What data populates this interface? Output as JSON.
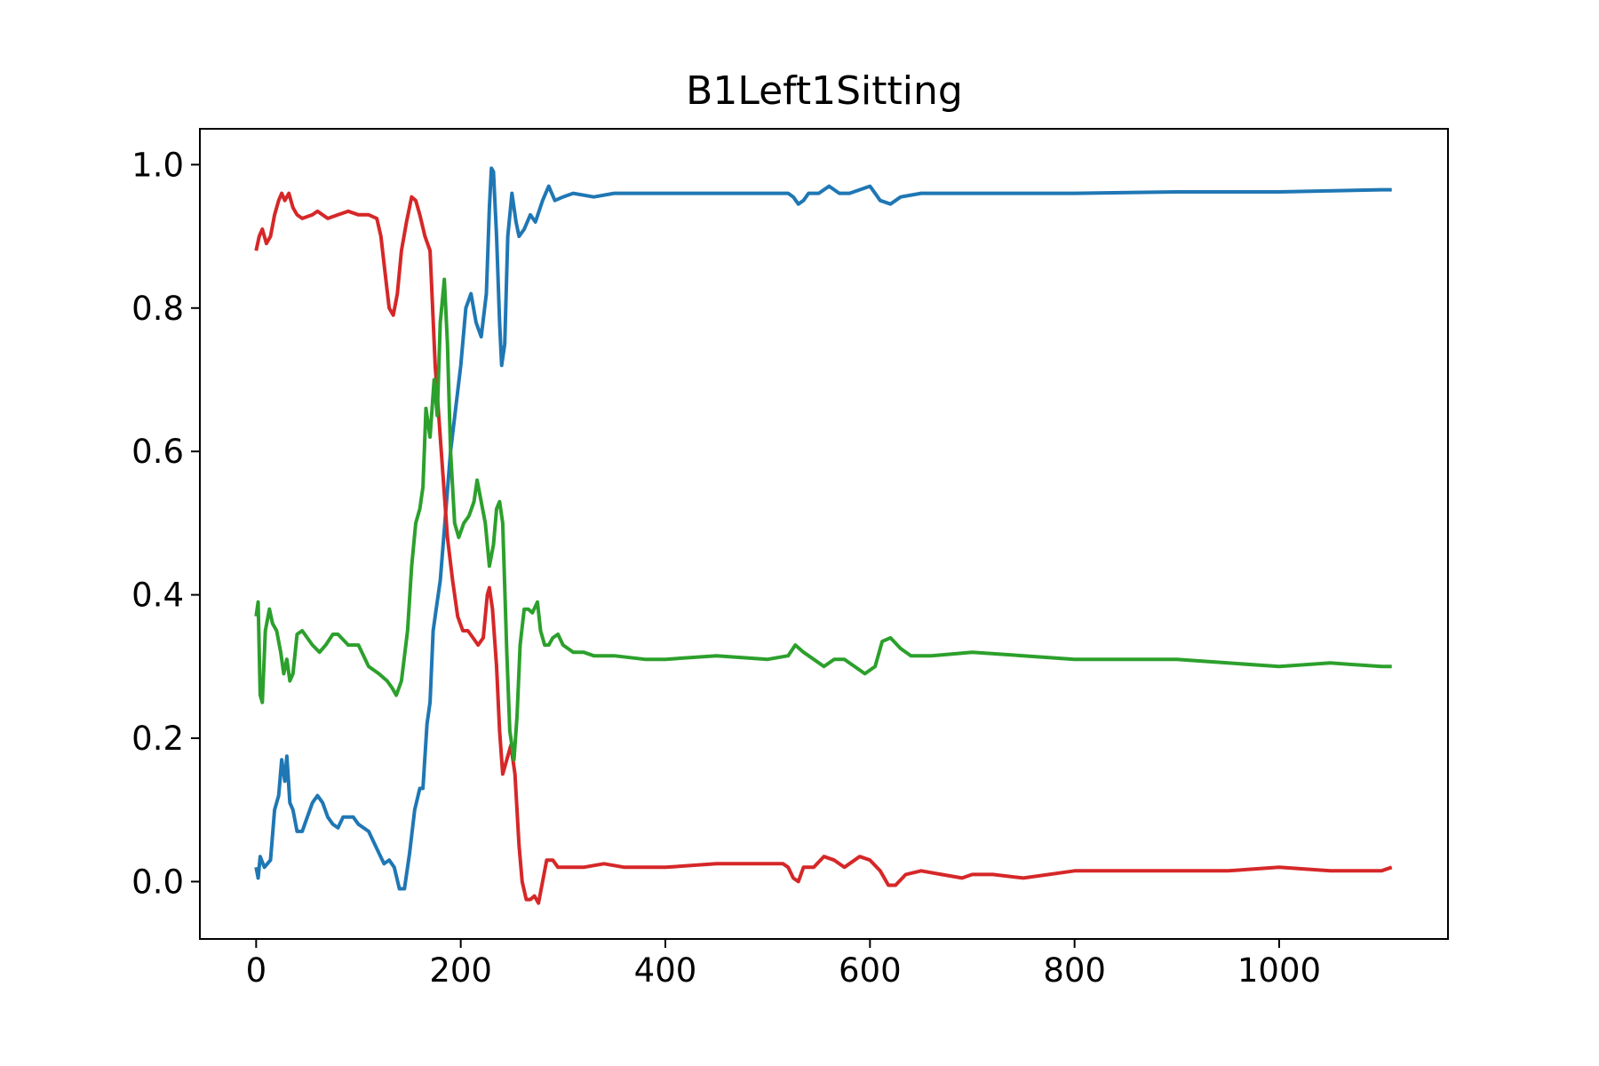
{
  "chart_data": {
    "type": "line",
    "title": "B1Left1Sitting",
    "xlabel": "",
    "ylabel": "",
    "xlim": [
      -55,
      1165
    ],
    "ylim": [
      -0.08,
      1.05
    ],
    "xticks": [
      0,
      200,
      400,
      600,
      800,
      1000
    ],
    "yticks": [
      0.0,
      0.2,
      0.4,
      0.6,
      0.8,
      1.0
    ],
    "xtick_labels": [
      "0",
      "200",
      "400",
      "600",
      "800",
      "1000"
    ],
    "ytick_labels": [
      "0.0",
      "0.2",
      "0.4",
      "0.6",
      "0.8",
      "1.0"
    ],
    "grid": false,
    "legend": "none",
    "series": [
      {
        "color": "#1f77b4",
        "points": [
          [
            0,
            0.02
          ],
          [
            2,
            0.005
          ],
          [
            4,
            0.035
          ],
          [
            8,
            0.02
          ],
          [
            14,
            0.03
          ],
          [
            18,
            0.1
          ],
          [
            22,
            0.12
          ],
          [
            25,
            0.17
          ],
          [
            28,
            0.14
          ],
          [
            30,
            0.175
          ],
          [
            33,
            0.11
          ],
          [
            36,
            0.1
          ],
          [
            40,
            0.07
          ],
          [
            45,
            0.07
          ],
          [
            50,
            0.09
          ],
          [
            55,
            0.11
          ],
          [
            60,
            0.12
          ],
          [
            65,
            0.11
          ],
          [
            70,
            0.09
          ],
          [
            75,
            0.08
          ],
          [
            80,
            0.075
          ],
          [
            85,
            0.09
          ],
          [
            95,
            0.09
          ],
          [
            100,
            0.08
          ],
          [
            110,
            0.07
          ],
          [
            120,
            0.04
          ],
          [
            125,
            0.025
          ],
          [
            130,
            0.03
          ],
          [
            135,
            0.02
          ],
          [
            140,
            -0.01
          ],
          [
            145,
            -0.01
          ],
          [
            150,
            0.04
          ],
          [
            155,
            0.1
          ],
          [
            160,
            0.13
          ],
          [
            163,
            0.13
          ],
          [
            167,
            0.22
          ],
          [
            170,
            0.25
          ],
          [
            173,
            0.35
          ],
          [
            176,
            0.38
          ],
          [
            180,
            0.42
          ],
          [
            190,
            0.6
          ],
          [
            200,
            0.72
          ],
          [
            205,
            0.8
          ],
          [
            210,
            0.82
          ],
          [
            215,
            0.78
          ],
          [
            220,
            0.76
          ],
          [
            225,
            0.82
          ],
          [
            228,
            0.94
          ],
          [
            230,
            0.995
          ],
          [
            232,
            0.99
          ],
          [
            235,
            0.9
          ],
          [
            238,
            0.78
          ],
          [
            240,
            0.72
          ],
          [
            243,
            0.75
          ],
          [
            246,
            0.9
          ],
          [
            250,
            0.96
          ],
          [
            254,
            0.92
          ],
          [
            257,
            0.9
          ],
          [
            262,
            0.91
          ],
          [
            268,
            0.93
          ],
          [
            273,
            0.92
          ],
          [
            280,
            0.95
          ],
          [
            286,
            0.97
          ],
          [
            292,
            0.95
          ],
          [
            300,
            0.955
          ],
          [
            310,
            0.96
          ],
          [
            330,
            0.955
          ],
          [
            350,
            0.96
          ],
          [
            400,
            0.96
          ],
          [
            450,
            0.96
          ],
          [
            500,
            0.96
          ],
          [
            520,
            0.96
          ],
          [
            525,
            0.955
          ],
          [
            530,
            0.945
          ],
          [
            535,
            0.95
          ],
          [
            540,
            0.96
          ],
          [
            550,
            0.96
          ],
          [
            560,
            0.97
          ],
          [
            570,
            0.96
          ],
          [
            580,
            0.96
          ],
          [
            590,
            0.965
          ],
          [
            600,
            0.97
          ],
          [
            605,
            0.96
          ],
          [
            610,
            0.95
          ],
          [
            620,
            0.945
          ],
          [
            630,
            0.955
          ],
          [
            650,
            0.96
          ],
          [
            700,
            0.96
          ],
          [
            750,
            0.96
          ],
          [
            800,
            0.96
          ],
          [
            900,
            0.962
          ],
          [
            1000,
            0.962
          ],
          [
            1100,
            0.965
          ],
          [
            1110,
            0.965
          ]
        ]
      },
      {
        "color": "#d62728",
        "points": [
          [
            0,
            0.88
          ],
          [
            3,
            0.9
          ],
          [
            6,
            0.91
          ],
          [
            10,
            0.89
          ],
          [
            14,
            0.9
          ],
          [
            18,
            0.93
          ],
          [
            22,
            0.95
          ],
          [
            25,
            0.96
          ],
          [
            28,
            0.95
          ],
          [
            32,
            0.96
          ],
          [
            36,
            0.94
          ],
          [
            40,
            0.93
          ],
          [
            45,
            0.925
          ],
          [
            55,
            0.93
          ],
          [
            60,
            0.935
          ],
          [
            70,
            0.925
          ],
          [
            80,
            0.93
          ],
          [
            90,
            0.935
          ],
          [
            100,
            0.93
          ],
          [
            110,
            0.93
          ],
          [
            118,
            0.925
          ],
          [
            122,
            0.9
          ],
          [
            126,
            0.85
          ],
          [
            130,
            0.8
          ],
          [
            134,
            0.79
          ],
          [
            138,
            0.82
          ],
          [
            142,
            0.88
          ],
          [
            147,
            0.92
          ],
          [
            152,
            0.955
          ],
          [
            156,
            0.95
          ],
          [
            160,
            0.93
          ],
          [
            165,
            0.9
          ],
          [
            170,
            0.88
          ],
          [
            175,
            0.72
          ],
          [
            178,
            0.66
          ],
          [
            182,
            0.58
          ],
          [
            187,
            0.48
          ],
          [
            192,
            0.42
          ],
          [
            197,
            0.37
          ],
          [
            202,
            0.35
          ],
          [
            207,
            0.35
          ],
          [
            212,
            0.34
          ],
          [
            217,
            0.33
          ],
          [
            222,
            0.34
          ],
          [
            226,
            0.4
          ],
          [
            228,
            0.41
          ],
          [
            231,
            0.38
          ],
          [
            235,
            0.3
          ],
          [
            238,
            0.21
          ],
          [
            241,
            0.15
          ],
          [
            245,
            0.17
          ],
          [
            249,
            0.19
          ],
          [
            253,
            0.15
          ],
          [
            257,
            0.05
          ],
          [
            260,
            0.0
          ],
          [
            264,
            -0.025
          ],
          [
            268,
            -0.025
          ],
          [
            272,
            -0.02
          ],
          [
            276,
            -0.03
          ],
          [
            280,
            0.0
          ],
          [
            284,
            0.03
          ],
          [
            290,
            0.03
          ],
          [
            295,
            0.02
          ],
          [
            300,
            0.02
          ],
          [
            320,
            0.02
          ],
          [
            340,
            0.025
          ],
          [
            360,
            0.02
          ],
          [
            400,
            0.02
          ],
          [
            450,
            0.025
          ],
          [
            500,
            0.025
          ],
          [
            515,
            0.025
          ],
          [
            520,
            0.02
          ],
          [
            525,
            0.005
          ],
          [
            530,
            0.0
          ],
          [
            535,
            0.02
          ],
          [
            545,
            0.02
          ],
          [
            555,
            0.035
          ],
          [
            565,
            0.03
          ],
          [
            575,
            0.02
          ],
          [
            590,
            0.035
          ],
          [
            600,
            0.03
          ],
          [
            610,
            0.015
          ],
          [
            618,
            -0.005
          ],
          [
            625,
            -0.005
          ],
          [
            635,
            0.01
          ],
          [
            650,
            0.015
          ],
          [
            670,
            0.01
          ],
          [
            690,
            0.005
          ],
          [
            700,
            0.01
          ],
          [
            720,
            0.01
          ],
          [
            750,
            0.005
          ],
          [
            800,
            0.015
          ],
          [
            850,
            0.015
          ],
          [
            900,
            0.015
          ],
          [
            950,
            0.015
          ],
          [
            1000,
            0.02
          ],
          [
            1050,
            0.015
          ],
          [
            1100,
            0.015
          ],
          [
            1110,
            0.02
          ]
        ]
      },
      {
        "color": "#2ca02c",
        "points": [
          [
            0,
            0.37
          ],
          [
            2,
            0.39
          ],
          [
            4,
            0.26
          ],
          [
            6,
            0.25
          ],
          [
            9,
            0.35
          ],
          [
            13,
            0.38
          ],
          [
            16,
            0.36
          ],
          [
            20,
            0.35
          ],
          [
            24,
            0.32
          ],
          [
            27,
            0.29
          ],
          [
            30,
            0.31
          ],
          [
            33,
            0.28
          ],
          [
            36,
            0.29
          ],
          [
            40,
            0.345
          ],
          [
            45,
            0.35
          ],
          [
            55,
            0.33
          ],
          [
            62,
            0.32
          ],
          [
            68,
            0.33
          ],
          [
            75,
            0.345
          ],
          [
            80,
            0.345
          ],
          [
            90,
            0.33
          ],
          [
            100,
            0.33
          ],
          [
            110,
            0.3
          ],
          [
            120,
            0.29
          ],
          [
            128,
            0.28
          ],
          [
            133,
            0.27
          ],
          [
            137,
            0.26
          ],
          [
            142,
            0.28
          ],
          [
            148,
            0.35
          ],
          [
            152,
            0.44
          ],
          [
            156,
            0.5
          ],
          [
            160,
            0.52
          ],
          [
            163,
            0.55
          ],
          [
            166,
            0.66
          ],
          [
            170,
            0.62
          ],
          [
            174,
            0.7
          ],
          [
            177,
            0.65
          ],
          [
            180,
            0.78
          ],
          [
            184,
            0.84
          ],
          [
            187,
            0.75
          ],
          [
            190,
            0.6
          ],
          [
            194,
            0.5
          ],
          [
            198,
            0.48
          ],
          [
            203,
            0.5
          ],
          [
            208,
            0.51
          ],
          [
            213,
            0.53
          ],
          [
            216,
            0.56
          ],
          [
            220,
            0.53
          ],
          [
            224,
            0.5
          ],
          [
            228,
            0.44
          ],
          [
            232,
            0.47
          ],
          [
            235,
            0.52
          ],
          [
            238,
            0.53
          ],
          [
            241,
            0.5
          ],
          [
            245,
            0.32
          ],
          [
            248,
            0.21
          ],
          [
            252,
            0.17
          ],
          [
            255,
            0.23
          ],
          [
            258,
            0.33
          ],
          [
            262,
            0.38
          ],
          [
            266,
            0.38
          ],
          [
            270,
            0.375
          ],
          [
            275,
            0.39
          ],
          [
            278,
            0.35
          ],
          [
            282,
            0.33
          ],
          [
            286,
            0.33
          ],
          [
            290,
            0.34
          ],
          [
            295,
            0.345
          ],
          [
            300,
            0.33
          ],
          [
            310,
            0.32
          ],
          [
            320,
            0.32
          ],
          [
            330,
            0.315
          ],
          [
            350,
            0.315
          ],
          [
            380,
            0.31
          ],
          [
            400,
            0.31
          ],
          [
            450,
            0.315
          ],
          [
            500,
            0.31
          ],
          [
            520,
            0.315
          ],
          [
            527,
            0.33
          ],
          [
            535,
            0.32
          ],
          [
            545,
            0.31
          ],
          [
            555,
            0.3
          ],
          [
            565,
            0.31
          ],
          [
            575,
            0.31
          ],
          [
            585,
            0.3
          ],
          [
            595,
            0.29
          ],
          [
            605,
            0.3
          ],
          [
            612,
            0.335
          ],
          [
            620,
            0.34
          ],
          [
            630,
            0.325
          ],
          [
            640,
            0.315
          ],
          [
            660,
            0.315
          ],
          [
            700,
            0.32
          ],
          [
            750,
            0.315
          ],
          [
            800,
            0.31
          ],
          [
            850,
            0.31
          ],
          [
            900,
            0.31
          ],
          [
            950,
            0.305
          ],
          [
            1000,
            0.3
          ],
          [
            1050,
            0.305
          ],
          [
            1100,
            0.3
          ],
          [
            1110,
            0.3
          ]
        ]
      }
    ]
  }
}
